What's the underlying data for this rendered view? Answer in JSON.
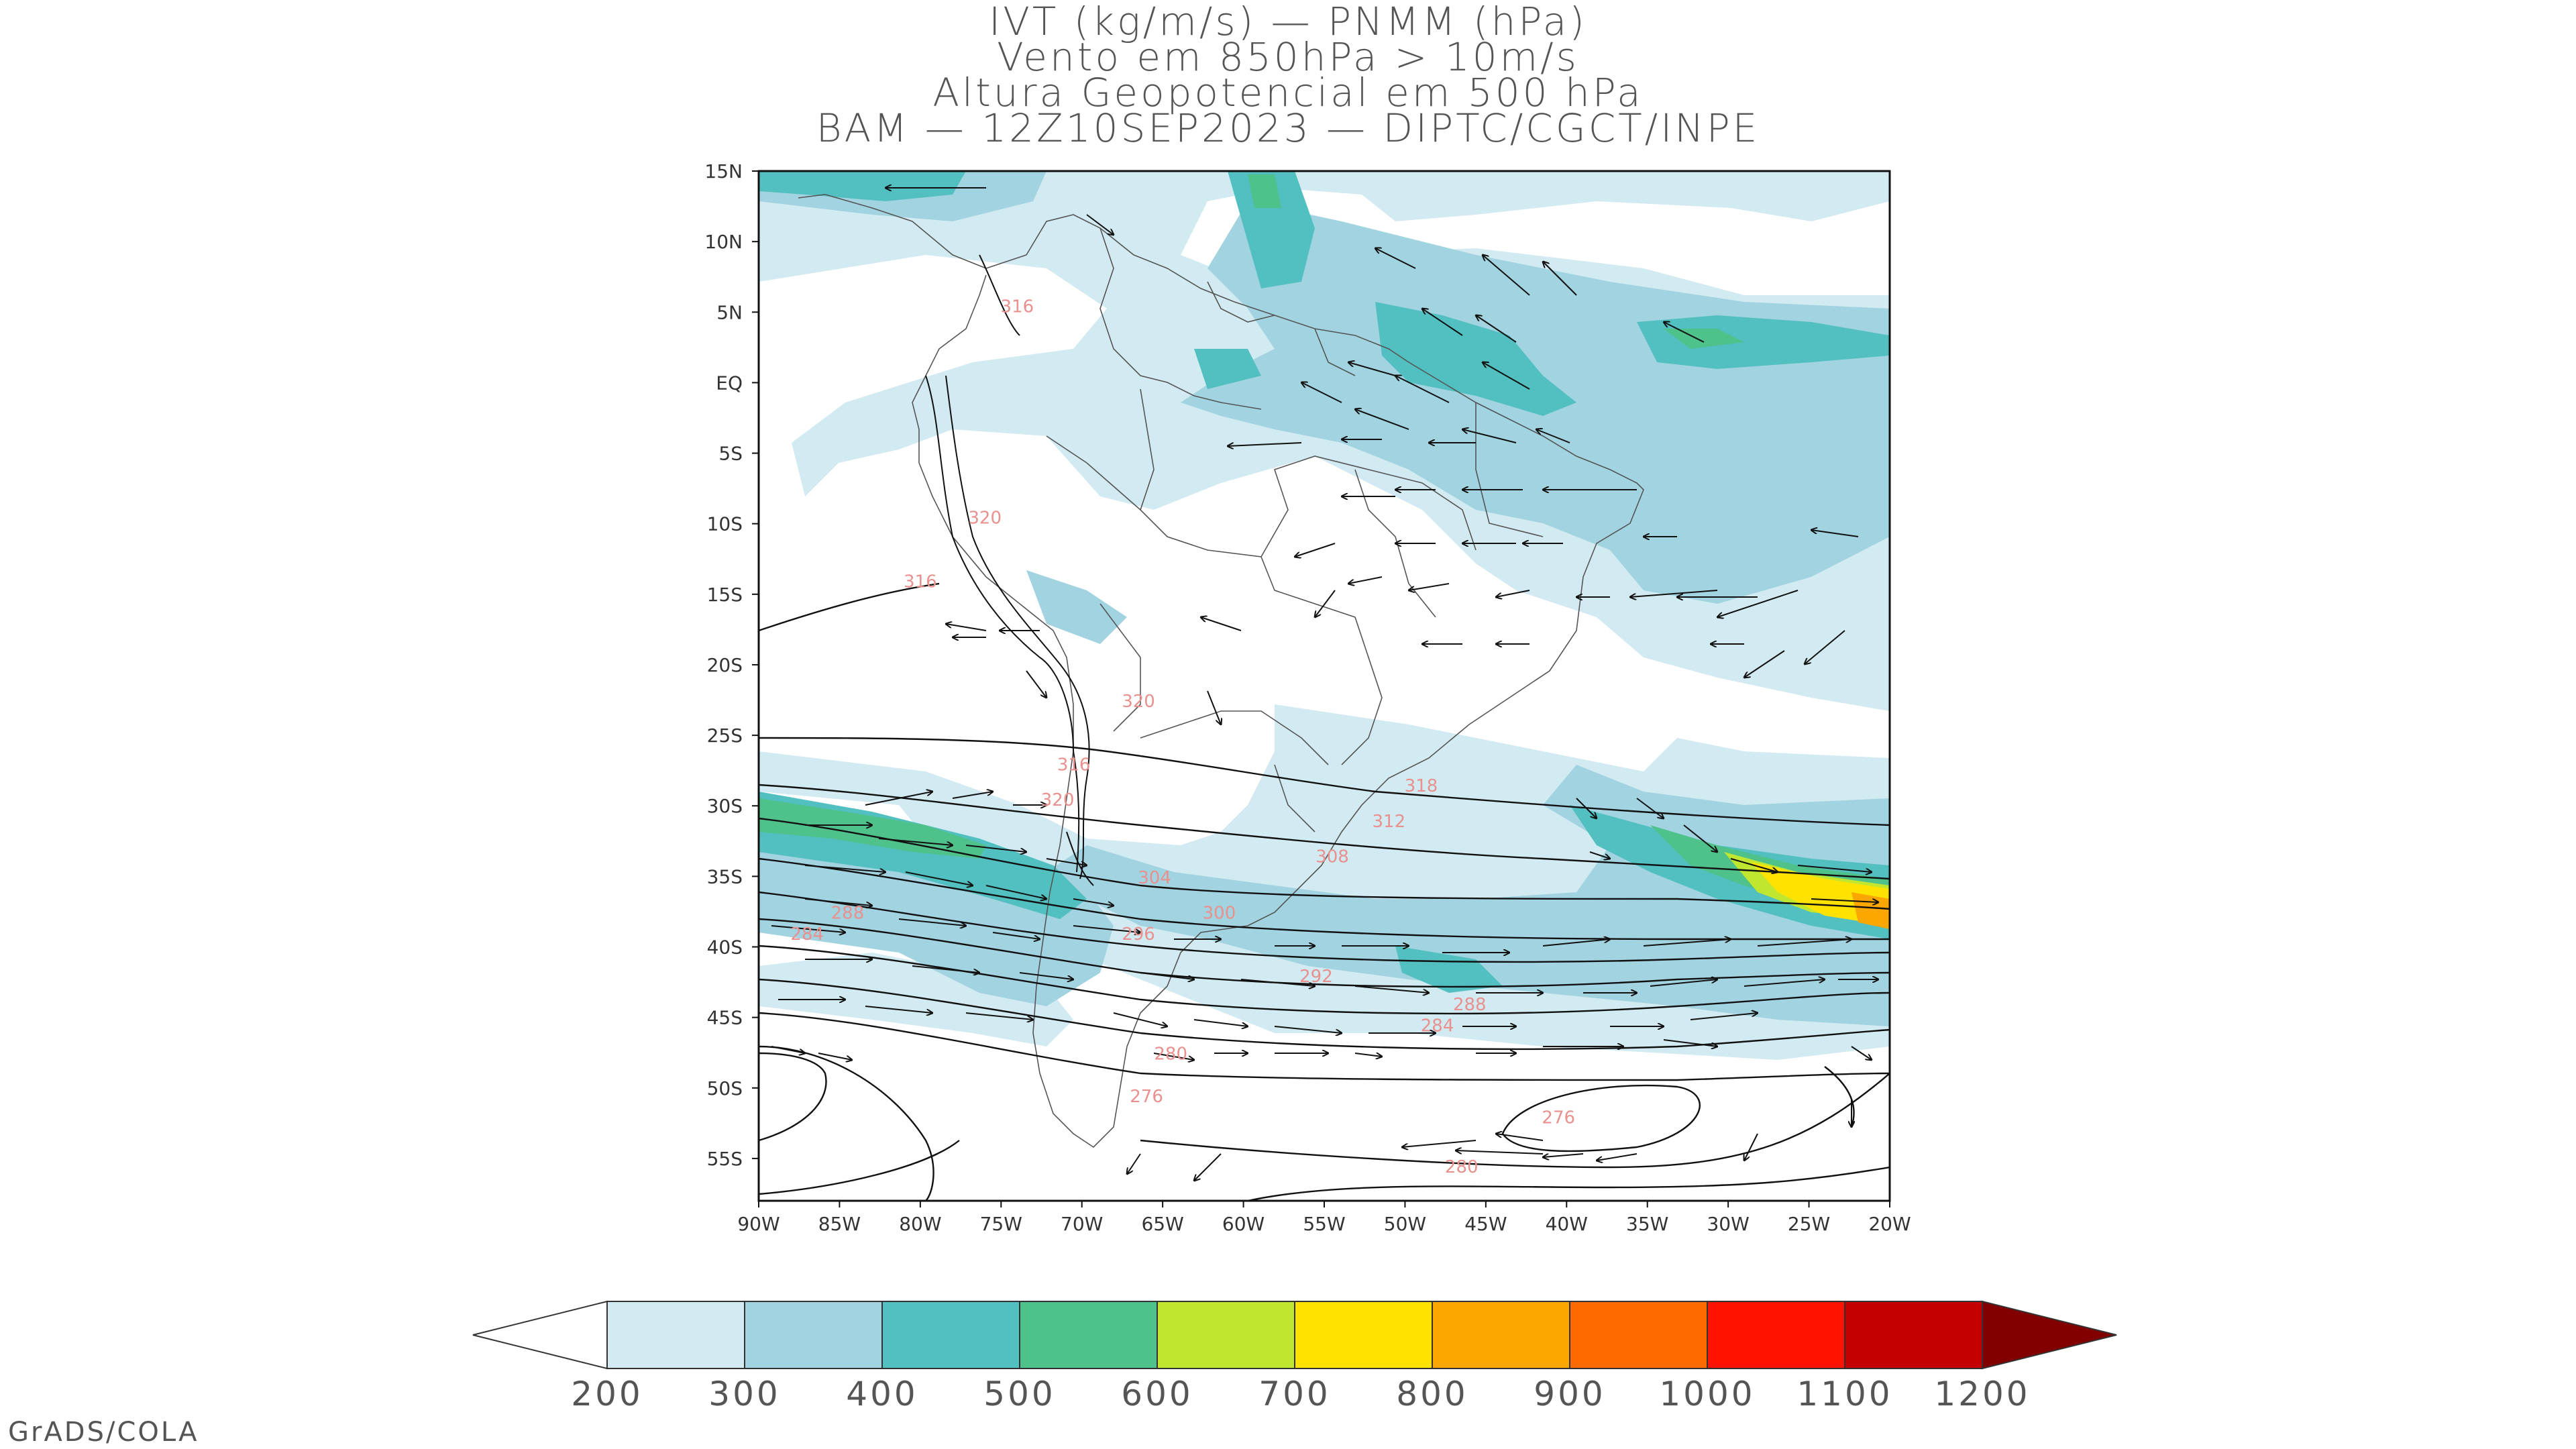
{
  "title": {
    "line1": "IVT (kg/m/s) — PNMM (hPa)",
    "line2": "Vento em 850hPa > 10m/s",
    "line3": "Altura Geopotencial em 500 hPa",
    "line4": "BAM — 12Z10SEP2023 — DIPTC/CGCT/INPE"
  },
  "credit": "GrADS/COLA",
  "map": {
    "lon_range": [
      -90,
      -20
    ],
    "lat_range": [
      -58,
      15
    ],
    "lon_ticks": [
      {
        "value": -90,
        "label": "90W"
      },
      {
        "value": -85,
        "label": "85W"
      },
      {
        "value": -80,
        "label": "80W"
      },
      {
        "value": -75,
        "label": "75W"
      },
      {
        "value": -70,
        "label": "70W"
      },
      {
        "value": -65,
        "label": "65W"
      },
      {
        "value": -60,
        "label": "60W"
      },
      {
        "value": -55,
        "label": "55W"
      },
      {
        "value": -50,
        "label": "50W"
      },
      {
        "value": -45,
        "label": "45W"
      },
      {
        "value": -40,
        "label": "40W"
      },
      {
        "value": -35,
        "label": "35W"
      },
      {
        "value": -30,
        "label": "30W"
      },
      {
        "value": -25,
        "label": "25W"
      },
      {
        "value": -20,
        "label": "20W"
      }
    ],
    "lat_ticks": [
      {
        "value": 15,
        "label": "15N"
      },
      {
        "value": 10,
        "label": "10N"
      },
      {
        "value": 5,
        "label": "5N"
      },
      {
        "value": 0,
        "label": "EQ"
      },
      {
        "value": -5,
        "label": "5S"
      },
      {
        "value": -10,
        "label": "10S"
      },
      {
        "value": -15,
        "label": "15S"
      },
      {
        "value": -20,
        "label": "20S"
      },
      {
        "value": -25,
        "label": "25S"
      },
      {
        "value": -30,
        "label": "30S"
      },
      {
        "value": -35,
        "label": "35S"
      },
      {
        "value": -40,
        "label": "40S"
      },
      {
        "value": -45,
        "label": "45S"
      },
      {
        "value": -50,
        "label": "50S"
      },
      {
        "value": -55,
        "label": "55S"
      }
    ],
    "contour_labels": [
      {
        "text": "316",
        "lon": -74,
        "lat": 5
      },
      {
        "text": "320",
        "lon": -76,
        "lat": -10
      },
      {
        "text": "316",
        "lon": -80,
        "lat": -14.5
      },
      {
        "text": "320",
        "lon": -66.5,
        "lat": -23
      },
      {
        "text": "316",
        "lon": -70.5,
        "lat": -27.5
      },
      {
        "text": "320",
        "lon": -71.5,
        "lat": -30
      },
      {
        "text": "318",
        "lon": -49,
        "lat": -29
      },
      {
        "text": "312",
        "lon": -51,
        "lat": -31.5
      },
      {
        "text": "308",
        "lon": -54.5,
        "lat": -34
      },
      {
        "text": "304",
        "lon": -65.5,
        "lat": -35.5
      },
      {
        "text": "300",
        "lon": -61.5,
        "lat": -38
      },
      {
        "text": "296",
        "lon": -66.5,
        "lat": -39.5
      },
      {
        "text": "292",
        "lon": -55.5,
        "lat": -42.5
      },
      {
        "text": "288",
        "lon": -84.5,
        "lat": -38
      },
      {
        "text": "284",
        "lon": -87,
        "lat": -39.5
      },
      {
        "text": "288",
        "lon": -46,
        "lat": -44.5
      },
      {
        "text": "284",
        "lon": -48,
        "lat": -46
      },
      {
        "text": "280",
        "lon": -64.5,
        "lat": -48
      },
      {
        "text": "276",
        "lon": -66,
        "lat": -51
      },
      {
        "text": "276",
        "lon": -40.5,
        "lat": -52.5
      },
      {
        "text": "280",
        "lon": -46.5,
        "lat": -56
      }
    ]
  },
  "colorbar": {
    "labels": [
      "200",
      "300",
      "400",
      "500",
      "600",
      "700",
      "800",
      "900",
      "1000",
      "1100",
      "1200"
    ],
    "colors": [
      "#d2eaf1",
      "#a2d3e0",
      "#52c0c0",
      "#4fc18b",
      "#c0e62f",
      "#ffe200",
      "#fca700",
      "#fc6a00",
      "#ff1200",
      "#c40000",
      "#820000"
    ]
  }
}
